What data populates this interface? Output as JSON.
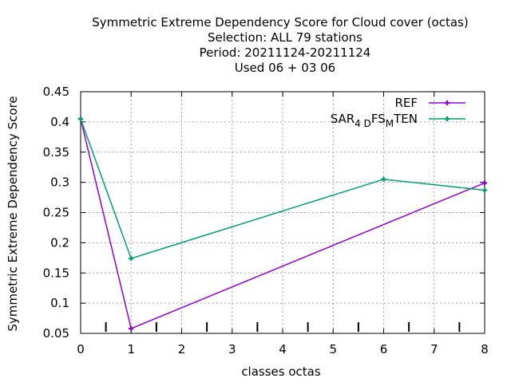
{
  "chart_data": {
    "type": "line",
    "title_lines": [
      "Symmetric Extreme Dependency Score  for Cloud cover (octas)",
      "Selection: ALL     79 stations",
      "Period: 20211124-20211124",
      "Used  06 + 03 06"
    ],
    "xlabel": "classes octas",
    "ylabel": "Symmetric Extreme Dependency Score",
    "xlim": [
      0,
      8
    ],
    "ylim": [
      0.05,
      0.45
    ],
    "xticks": [
      "0",
      "1",
      "2",
      "3",
      "4",
      "5",
      "6",
      "7",
      "8"
    ],
    "yticks": [
      "0.05",
      "0.1",
      "0.15",
      "0.2",
      "0.25",
      "0.3",
      "0.35",
      "0.4",
      "0.45"
    ],
    "grid": true,
    "legend_position": "top-right",
    "count_marks_x": [
      0.5,
      1.5,
      2.5,
      3.5,
      4.5,
      5.5,
      6.5,
      7.5
    ],
    "series": [
      {
        "name": "REF",
        "color": "#9400d3",
        "x": [
          0,
          1,
          8
        ],
        "y": [
          0.405,
          0.058,
          0.299
        ]
      },
      {
        "name_parts": [
          "SAR",
          "4 D",
          "FS",
          "M",
          "TEN"
        ],
        "color": "#009e73",
        "x": [
          0,
          1,
          6,
          8
        ],
        "y": [
          0.405,
          0.174,
          0.305,
          0.287
        ]
      }
    ]
  }
}
